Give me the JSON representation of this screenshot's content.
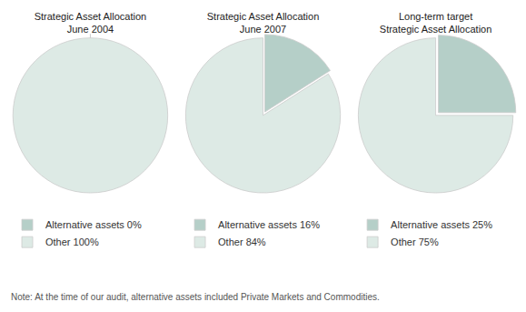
{
  "chart_data": [
    {
      "type": "pie",
      "title": "Strategic Asset Allocation\nJune 2004",
      "categories": [
        "Alternative assets 0%",
        "Other 100%"
      ],
      "values": [
        0,
        100
      ],
      "colors": [
        "#b5cfc8",
        "#ddeae5"
      ],
      "legend": "bottom"
    },
    {
      "type": "pie",
      "title": "Strategic Asset Allocation\nJune 2007",
      "categories": [
        "Alternative assets 16%",
        "Other 84%"
      ],
      "values": [
        16,
        84
      ],
      "colors": [
        "#b5cfc8",
        "#ddeae5"
      ],
      "legend": "bottom"
    },
    {
      "type": "pie",
      "title": "Long-term target\nStrategic Asset Allocation",
      "categories": [
        "Alternative assets 25%",
        "Other 75%"
      ],
      "values": [
        25,
        75
      ],
      "colors": [
        "#b5cfc8",
        "#ddeae5"
      ],
      "legend": "bottom"
    }
  ],
  "annotations": [
    "Note: At the time of our audit, alternative assets included Private Markets and Commodities."
  ]
}
